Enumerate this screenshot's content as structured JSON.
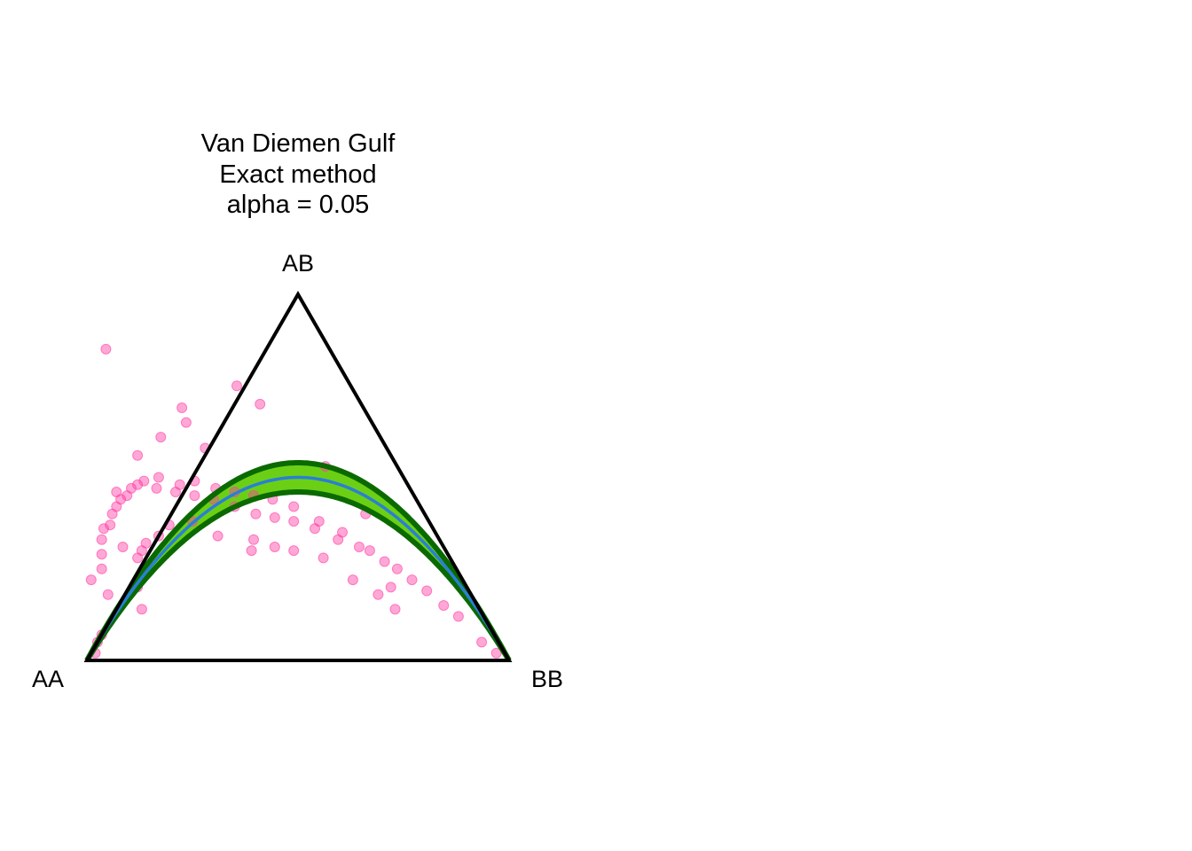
{
  "chart_data": {
    "type": "scatter",
    "subtype": "de-finetti-ternary",
    "title": [
      "Van Diemen Gulf",
      "Exact method",
      "alpha = 0.05"
    ],
    "vertices": {
      "left": "AA",
      "top": "AB",
      "right": "BB"
    },
    "colors": {
      "points": "#ff3ea5",
      "hwe_curve": "#2a7fd4",
      "acceptance_band": "#6bd015",
      "band_edges": "#0a6a00",
      "triangle": "#000000"
    },
    "hwe_curve": "Hardy-Weinberg parabola, AB = 2p(1-p)",
    "acceptance_band_halfwidth": 0.04,
    "points": [
      {
        "p_aa": 0.88,
        "p_ab": 0.22
      },
      {
        "p_aa": 0.84,
        "p_ab": 0.25
      },
      {
        "p_aa": 0.86,
        "p_ab": 0.18
      },
      {
        "p_aa": 0.82,
        "p_ab": 0.29
      },
      {
        "p_aa": 0.8,
        "p_ab": 0.33
      },
      {
        "p_aa": 0.78,
        "p_ab": 0.36
      },
      {
        "p_aa": 0.76,
        "p_ab": 0.37
      },
      {
        "p_aa": 0.74,
        "p_ab": 0.4
      },
      {
        "p_aa": 0.72,
        "p_ab": 0.42
      },
      {
        "p_aa": 0.7,
        "p_ab": 0.44
      },
      {
        "p_aa": 0.68,
        "p_ab": 0.45
      },
      {
        "p_aa": 0.66,
        "p_ab": 0.47
      },
      {
        "p_aa": 0.64,
        "p_ab": 0.48
      },
      {
        "p_aa": 0.62,
        "p_ab": 0.49
      },
      {
        "p_aa": 0.6,
        "p_ab": 0.47
      },
      {
        "p_aa": 0.58,
        "p_ab": 0.5
      },
      {
        "p_aa": 0.56,
        "p_ab": 0.46
      },
      {
        "p_aa": 0.54,
        "p_ab": 0.48
      },
      {
        "p_aa": 0.52,
        "p_ab": 0.45
      },
      {
        "p_aa": 0.5,
        "p_ab": 0.49
      },
      {
        "p_aa": 0.48,
        "p_ab": 0.44
      },
      {
        "p_aa": 0.46,
        "p_ab": 0.47
      },
      {
        "p_aa": 0.44,
        "p_ab": 0.42
      },
      {
        "p_aa": 0.42,
        "p_ab": 0.46
      },
      {
        "p_aa": 0.4,
        "p_ab": 0.4
      },
      {
        "p_aa": 0.38,
        "p_ab": 0.45
      },
      {
        "p_aa": 0.36,
        "p_ab": 0.39
      },
      {
        "p_aa": 0.34,
        "p_ab": 0.44
      },
      {
        "p_aa": 0.32,
        "p_ab": 0.38
      },
      {
        "p_aa": 0.3,
        "p_ab": 0.42
      },
      {
        "p_aa": 0.28,
        "p_ab": 0.36
      },
      {
        "p_aa": 0.26,
        "p_ab": 0.38
      },
      {
        "p_aa": 0.24,
        "p_ab": 0.33
      },
      {
        "p_aa": 0.22,
        "p_ab": 0.35
      },
      {
        "p_aa": 0.2,
        "p_ab": 0.31
      },
      {
        "p_aa": 0.18,
        "p_ab": 0.3
      },
      {
        "p_aa": 0.16,
        "p_ab": 0.27
      },
      {
        "p_aa": 0.14,
        "p_ab": 0.25
      },
      {
        "p_aa": 0.12,
        "p_ab": 0.22
      },
      {
        "p_aa": 0.1,
        "p_ab": 0.19
      },
      {
        "p_aa": 0.08,
        "p_ab": 0.15
      },
      {
        "p_aa": 0.06,
        "p_ab": 0.12
      },
      {
        "p_aa": 0.95,
        "p_ab": 0.05
      },
      {
        "p_aa": 0.97,
        "p_ab": 0.02
      },
      {
        "p_aa": 0.93,
        "p_ab": 0.07
      },
      {
        "p_aa": 0.02,
        "p_ab": 0.02
      },
      {
        "p_aa": 0.04,
        "p_ab": 0.05
      },
      {
        "p_aa": 0.7,
        "p_ab": 0.32
      },
      {
        "p_aa": 0.72,
        "p_ab": 0.3
      },
      {
        "p_aa": 0.74,
        "p_ab": 0.28
      },
      {
        "p_aa": 0.76,
        "p_ab": 0.23
      },
      {
        "p_aa": 0.78,
        "p_ab": 0.2
      },
      {
        "p_aa": 0.8,
        "p_ab": 0.14
      },
      {
        "p_aa": 0.66,
        "p_ab": 0.34
      },
      {
        "p_aa": 0.62,
        "p_ab": 0.37
      },
      {
        "p_aa": 0.56,
        "p_ab": 0.38
      },
      {
        "p_aa": 0.52,
        "p_ab": 0.34
      },
      {
        "p_aa": 0.46,
        "p_ab": 0.3
      },
      {
        "p_aa": 0.44,
        "p_ab": 0.33
      },
      {
        "p_aa": 0.4,
        "p_ab": 0.31
      },
      {
        "p_aa": 0.36,
        "p_ab": 0.3
      },
      {
        "p_aa": 0.3,
        "p_ab": 0.28
      },
      {
        "p_aa": 0.26,
        "p_ab": 0.22
      },
      {
        "p_aa": 0.22,
        "p_ab": 0.18
      },
      {
        "p_aa": 0.2,
        "p_ab": 0.14
      },
      {
        "p_aa": 0.18,
        "p_ab": 0.2
      },
      {
        "p_aa": 0.52,
        "p_ab": 0.61
      },
      {
        "p_aa": 0.44,
        "p_ab": 0.65
      },
      {
        "p_aa": 0.43,
        "p_ab": 0.69
      },
      {
        "p_aa": 0.43,
        "p_ab": 0.58
      },
      {
        "p_aa": 0.6,
        "p_ab": 0.56
      },
      {
        "p_aa": 0.27,
        "p_ab": 0.75
      },
      {
        "p_aa": 0.24,
        "p_ab": 0.7
      },
      {
        "p_aa": 0.17,
        "p_ab": 0.53
      },
      {
        "p_aa": 0.53,
        "p_ab": 0.85
      },
      {
        "p_aa": 0.7,
        "p_ab": 0.46
      },
      {
        "p_aa": 0.14,
        "p_ab": 0.4
      },
      {
        "p_aa": 0.76,
        "p_ab": 0.31
      }
    ]
  }
}
